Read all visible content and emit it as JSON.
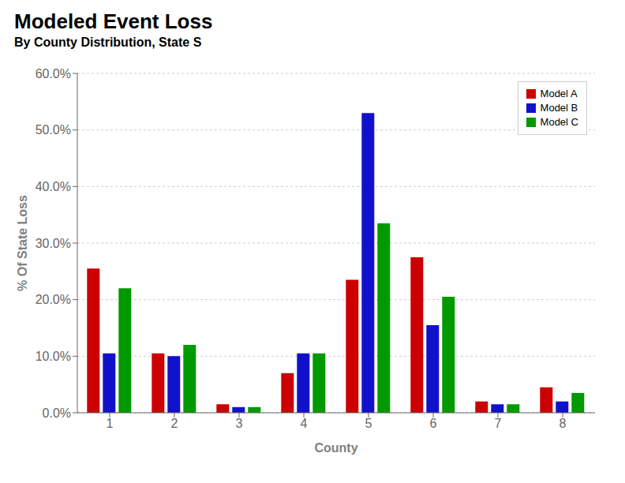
{
  "chart_data": {
    "type": "bar",
    "title": "Modeled Event Loss",
    "subtitle": "By County Distribution, State S",
    "categories": [
      "1",
      "2",
      "3",
      "4",
      "5",
      "6",
      "7",
      "8"
    ],
    "series": [
      {
        "name": "Model A",
        "color": "#CC0000",
        "values": [
          25.5,
          10.5,
          1.5,
          7.0,
          23.5,
          27.5,
          2.0,
          4.5
        ]
      },
      {
        "name": "Model B",
        "color": "#1111CC",
        "values": [
          10.5,
          10.0,
          1.0,
          10.5,
          53.0,
          15.5,
          1.5,
          2.0
        ]
      },
      {
        "name": "Model C",
        "color": "#009900",
        "values": [
          22.0,
          12.0,
          1.0,
          10.5,
          33.5,
          20.5,
          1.5,
          3.5
        ]
      }
    ],
    "xlabel": "County",
    "ylabel": "% Of State Loss",
    "ylim": [
      0,
      60
    ],
    "yticks": [
      {
        "value": 0,
        "label": "0.0%"
      },
      {
        "value": 10,
        "label": "10.0%"
      },
      {
        "value": 20,
        "label": "20.0%"
      },
      {
        "value": 30,
        "label": "30.0%"
      },
      {
        "value": 40,
        "label": "40.0%"
      },
      {
        "value": 50,
        "label": "50.0%"
      },
      {
        "value": 60,
        "label": "60.0%"
      }
    ],
    "grid": true,
    "legend": "upper right"
  }
}
